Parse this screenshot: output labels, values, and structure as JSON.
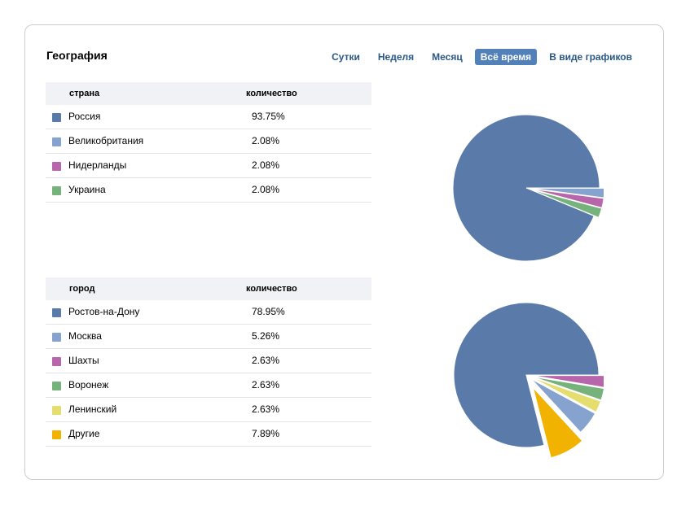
{
  "header": {
    "title": "География",
    "tabs": [
      {
        "label": "Сутки",
        "active": false
      },
      {
        "label": "Неделя",
        "active": false
      },
      {
        "label": "Месяц",
        "active": false
      },
      {
        "label": "Всё время",
        "active": true
      },
      {
        "label": "В виде графиков",
        "active": false
      }
    ]
  },
  "tables": [
    {
      "col1": "страна",
      "col2": "количество",
      "rows": [
        {
          "label": "Россия",
          "value": "93.75%",
          "color": "#5a7ba9"
        },
        {
          "label": "Великобритания",
          "value": "2.08%",
          "color": "#86a3cf"
        },
        {
          "label": "Нидерланды",
          "value": "2.08%",
          "color": "#b766ac"
        },
        {
          "label": "Украина",
          "value": "2.08%",
          "color": "#76b27b"
        }
      ]
    },
    {
      "col1": "город",
      "col2": "количество",
      "rows": [
        {
          "label": "Ростов-на-Дону",
          "value": "78.95%",
          "color": "#5a7ba9"
        },
        {
          "label": "Москва",
          "value": "5.26%",
          "color": "#86a3cf"
        },
        {
          "label": "Шахты",
          "value": "2.63%",
          "color": "#b766ac"
        },
        {
          "label": "Воронеж",
          "value": "2.63%",
          "color": "#76b27b"
        },
        {
          "label": "Ленинский",
          "value": "2.63%",
          "color": "#e5de6f"
        },
        {
          "label": "Другие",
          "value": "7.89%",
          "color": "#f2b200"
        }
      ]
    }
  ],
  "chart_data": [
    {
      "type": "pie",
      "categories": [
        "Россия",
        "Великобритания",
        "Нидерланды",
        "Украина"
      ],
      "values": [
        93.75,
        2.08,
        2.08,
        2.08
      ],
      "colors": [
        "#5a7ba9",
        "#86a3cf",
        "#b766ac",
        "#76b27b"
      ]
    },
    {
      "type": "pie",
      "categories": [
        "Ростов-на-Дону",
        "Шахты",
        "Воронеж",
        "Ленинский",
        "Москва",
        "Другие"
      ],
      "values": [
        78.95,
        2.63,
        2.63,
        2.63,
        5.26,
        7.89
      ],
      "colors": [
        "#5a7ba9",
        "#b766ac",
        "#76b27b",
        "#e5de6f",
        "#86a3cf",
        "#f2b200"
      ],
      "exploded": [
        "Другие"
      ]
    }
  ]
}
